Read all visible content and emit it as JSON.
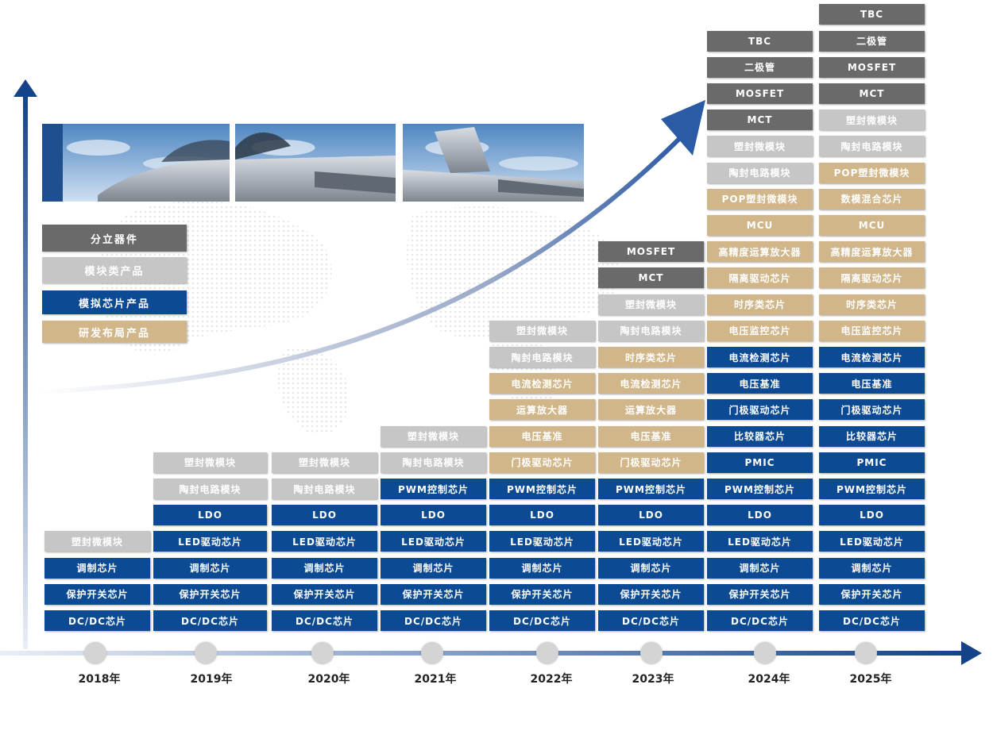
{
  "legend": [
    {
      "label": "分立器件",
      "category": "dark"
    },
    {
      "label": "模块类产品",
      "category": "light"
    },
    {
      "label": "模拟芯片产品",
      "category": "blue"
    },
    {
      "label": "研发布局产品",
      "category": "tan"
    }
  ],
  "colors": {
    "dark": "#6a6a6a",
    "light": "#c6c6c6",
    "blue": "#0c4a93",
    "tan": "#d1b68a"
  },
  "photo": {
    "subject": "fighter-jet-icon"
  },
  "years": [
    {
      "year": "2018年",
      "items": [
        {
          "label": "塑封微模块",
          "category": "light"
        },
        {
          "label": "调制芯片",
          "category": "blue"
        },
        {
          "label": "保护开关芯片",
          "category": "blue"
        },
        {
          "label": "DC/DC芯片",
          "category": "blue"
        }
      ]
    },
    {
      "year": "2019年",
      "items": [
        {
          "label": "塑封微模块",
          "category": "light"
        },
        {
          "label": "陶封电路模块",
          "category": "light"
        },
        {
          "label": "LDO",
          "category": "blue"
        },
        {
          "label": "LED驱动芯片",
          "category": "blue"
        },
        {
          "label": "调制芯片",
          "category": "blue"
        },
        {
          "label": "保护开关芯片",
          "category": "blue"
        },
        {
          "label": "DC/DC芯片",
          "category": "blue"
        }
      ]
    },
    {
      "year": "2020年",
      "items": [
        {
          "label": "塑封微模块",
          "category": "light"
        },
        {
          "label": "陶封电路模块",
          "category": "light"
        },
        {
          "label": "LDO",
          "category": "blue"
        },
        {
          "label": "LED驱动芯片",
          "category": "blue"
        },
        {
          "label": "调制芯片",
          "category": "blue"
        },
        {
          "label": "保护开关芯片",
          "category": "blue"
        },
        {
          "label": "DC/DC芯片",
          "category": "blue"
        }
      ]
    },
    {
      "year": "2021年",
      "items": [
        {
          "label": "塑封微模块",
          "category": "light"
        },
        {
          "label": "陶封电路模块",
          "category": "light"
        },
        {
          "label": "PWM控制芯片",
          "category": "blue"
        },
        {
          "label": "LDO",
          "category": "blue"
        },
        {
          "label": "LED驱动芯片",
          "category": "blue"
        },
        {
          "label": "调制芯片",
          "category": "blue"
        },
        {
          "label": "保护开关芯片",
          "category": "blue"
        },
        {
          "label": "DC/DC芯片",
          "category": "blue"
        }
      ]
    },
    {
      "year": "2022年",
      "items": [
        {
          "label": "塑封微模块",
          "category": "light"
        },
        {
          "label": "陶封电路模块",
          "category": "light"
        },
        {
          "label": "电流检测芯片",
          "category": "tan"
        },
        {
          "label": "运算放大器",
          "category": "tan"
        },
        {
          "label": "电压基准",
          "category": "tan"
        },
        {
          "label": "门极驱动芯片",
          "category": "tan"
        },
        {
          "label": "PWM控制芯片",
          "category": "blue"
        },
        {
          "label": "LDO",
          "category": "blue"
        },
        {
          "label": "LED驱动芯片",
          "category": "blue"
        },
        {
          "label": "调制芯片",
          "category": "blue"
        },
        {
          "label": "保护开关芯片",
          "category": "blue"
        },
        {
          "label": "DC/DC芯片",
          "category": "blue"
        }
      ]
    },
    {
      "year": "2023年",
      "items": [
        {
          "label": "MOSFET",
          "category": "dark"
        },
        {
          "label": "MCT",
          "category": "dark"
        },
        {
          "label": "塑封微模块",
          "category": "light"
        },
        {
          "label": "陶封电路模块",
          "category": "light"
        },
        {
          "label": "时序类芯片",
          "category": "tan"
        },
        {
          "label": "电流检测芯片",
          "category": "tan"
        },
        {
          "label": "运算放大器",
          "category": "tan"
        },
        {
          "label": "电压基准",
          "category": "tan"
        },
        {
          "label": "门极驱动芯片",
          "category": "tan"
        },
        {
          "label": "PWM控制芯片",
          "category": "blue"
        },
        {
          "label": "LDO",
          "category": "blue"
        },
        {
          "label": "LED驱动芯片",
          "category": "blue"
        },
        {
          "label": "调制芯片",
          "category": "blue"
        },
        {
          "label": "保护开关芯片",
          "category": "blue"
        },
        {
          "label": "DC/DC芯片",
          "category": "blue"
        }
      ]
    },
    {
      "year": "2024年",
      "items": [
        {
          "label": "TBC",
          "category": "dark"
        },
        {
          "label": "二极管",
          "category": "dark"
        },
        {
          "label": "MOSFET",
          "category": "dark"
        },
        {
          "label": "MCT",
          "category": "dark"
        },
        {
          "label": "塑封微模块",
          "category": "light"
        },
        {
          "label": "陶封电路模块",
          "category": "light"
        },
        {
          "label": "POP塑封微模块",
          "category": "tan"
        },
        {
          "label": "MCU",
          "category": "tan"
        },
        {
          "label": "高精度运算放大器",
          "category": "tan"
        },
        {
          "label": "隔离驱动芯片",
          "category": "tan"
        },
        {
          "label": "时序类芯片",
          "category": "tan"
        },
        {
          "label": "电压监控芯片",
          "category": "tan"
        },
        {
          "label": "电流检测芯片",
          "category": "blue"
        },
        {
          "label": "电压基准",
          "category": "blue"
        },
        {
          "label": "门极驱动芯片",
          "category": "blue"
        },
        {
          "label": "比较器芯片",
          "category": "blue"
        },
        {
          "label": "PMIC",
          "category": "blue"
        },
        {
          "label": "PWM控制芯片",
          "category": "blue"
        },
        {
          "label": "LDO",
          "category": "blue"
        },
        {
          "label": "LED驱动芯片",
          "category": "blue"
        },
        {
          "label": "调制芯片",
          "category": "blue"
        },
        {
          "label": "保护开关芯片",
          "category": "blue"
        },
        {
          "label": "DC/DC芯片",
          "category": "blue"
        }
      ]
    },
    {
      "year": "2025年",
      "items": [
        {
          "label": "TBC",
          "category": "dark"
        },
        {
          "label": "二极管",
          "category": "dark"
        },
        {
          "label": "MOSFET",
          "category": "dark"
        },
        {
          "label": "MCT",
          "category": "dark"
        },
        {
          "label": "塑封微模块",
          "category": "light"
        },
        {
          "label": "陶封电路模块",
          "category": "light"
        },
        {
          "label": "POP塑封微模块",
          "category": "tan"
        },
        {
          "label": "数模混合芯片",
          "category": "tan"
        },
        {
          "label": "MCU",
          "category": "tan"
        },
        {
          "label": "高精度运算放大器",
          "category": "tan"
        },
        {
          "label": "隔离驱动芯片",
          "category": "tan"
        },
        {
          "label": "时序类芯片",
          "category": "tan"
        },
        {
          "label": "电压监控芯片",
          "category": "tan"
        },
        {
          "label": "电流检测芯片",
          "category": "blue"
        },
        {
          "label": "电压基准",
          "category": "blue"
        },
        {
          "label": "门极驱动芯片",
          "category": "blue"
        },
        {
          "label": "比较器芯片",
          "category": "blue"
        },
        {
          "label": "PMIC",
          "category": "blue"
        },
        {
          "label": "PWM控制芯片",
          "category": "blue"
        },
        {
          "label": "LDO",
          "category": "blue"
        },
        {
          "label": "LED驱动芯片",
          "category": "blue"
        },
        {
          "label": "调制芯片",
          "category": "blue"
        },
        {
          "label": "保护开关芯片",
          "category": "blue"
        },
        {
          "label": "DC/DC芯片",
          "category": "blue"
        }
      ]
    }
  ]
}
